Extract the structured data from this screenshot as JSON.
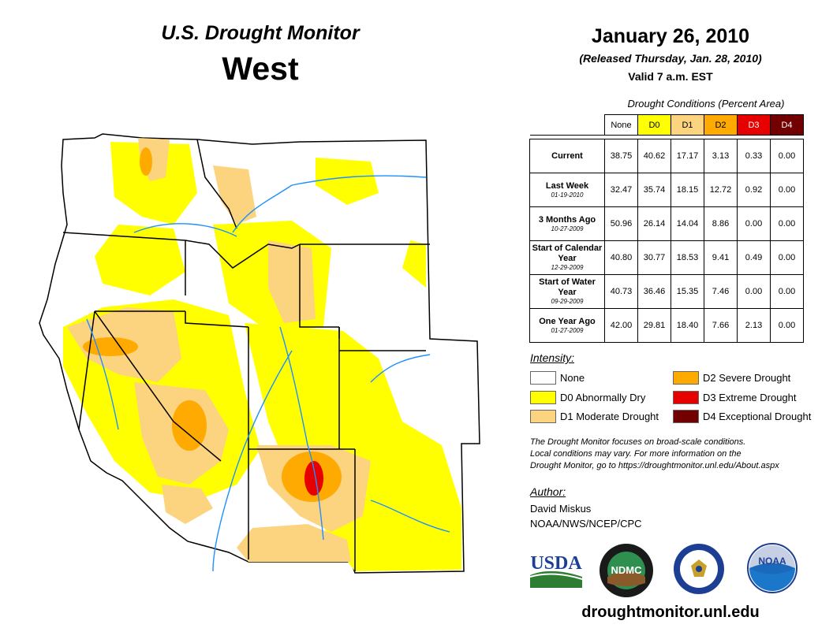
{
  "header": {
    "title": "U.S. Drought Monitor",
    "region": "West",
    "date": "January 26, 2010",
    "released": "(Released Thursday, Jan. 28, 2010)",
    "valid": "Valid 7 a.m. EST"
  },
  "table": {
    "caption": "Drought Conditions (Percent Area)",
    "columns": [
      "None",
      "D0",
      "D1",
      "D2",
      "D3",
      "D4"
    ],
    "rows": [
      {
        "label": "Current",
        "sublabel": "",
        "values": [
          "38.75",
          "40.62",
          "17.17",
          "3.13",
          "0.33",
          "0.00"
        ]
      },
      {
        "label": "Last Week",
        "sublabel": "01-19-2010",
        "values": [
          "32.47",
          "35.74",
          "18.15",
          "12.72",
          "0.92",
          "0.00"
        ]
      },
      {
        "label": "3 Months Ago",
        "sublabel": "10-27-2009",
        "values": [
          "50.96",
          "26.14",
          "14.04",
          "8.86",
          "0.00",
          "0.00"
        ]
      },
      {
        "label": "Start of Calendar Year",
        "sublabel": "12-29-2009",
        "values": [
          "40.80",
          "30.77",
          "18.53",
          "9.41",
          "0.49",
          "0.00"
        ]
      },
      {
        "label": "Start of Water Year",
        "sublabel": "09-29-2009",
        "values": [
          "40.73",
          "36.46",
          "15.35",
          "7.46",
          "0.00",
          "0.00"
        ]
      },
      {
        "label": "One Year Ago",
        "sublabel": "01-27-2009",
        "values": [
          "42.00",
          "29.81",
          "18.40",
          "7.66",
          "2.13",
          "0.00"
        ]
      }
    ]
  },
  "legend": {
    "title": "Intensity:",
    "items": [
      {
        "label": "None",
        "color": "#ffffff"
      },
      {
        "label": "D0 Abnormally Dry",
        "color": "#ffff00"
      },
      {
        "label": "D1 Moderate Drought",
        "color": "#fcd37f"
      },
      {
        "label": "D2 Severe Drought",
        "color": "#ffaa00"
      },
      {
        "label": "D3 Extreme Drought",
        "color": "#e60000"
      },
      {
        "label": "D4 Exceptional Drought",
        "color": "#730000"
      }
    ]
  },
  "note": {
    "line1": "The Drought Monitor focuses on broad-scale conditions.",
    "line2": "Local conditions may vary. For more information on the",
    "line3": "Drought Monitor, go to https://droughtmonitor.unl.edu/About.aspx"
  },
  "author": {
    "label": "Author:",
    "name": "David Miskus",
    "org": "NOAA/NWS/NCEP/CPC"
  },
  "logos": {
    "usda": "USDA",
    "ndmc": "NDMC",
    "noaa": "NOAA"
  },
  "footer": {
    "url": "droughtmonitor.unl.edu"
  },
  "colors": {
    "water": "#1e90ff",
    "border": "#000000"
  }
}
